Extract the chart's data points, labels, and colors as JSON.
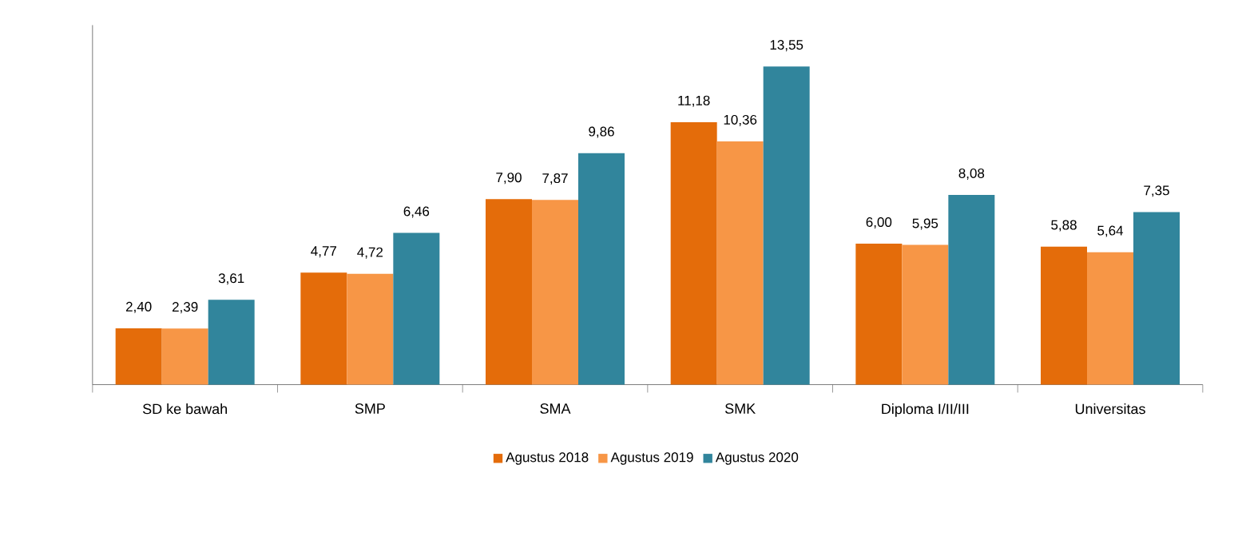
{
  "chart_data": {
    "type": "bar",
    "categories": [
      "SD ke bawah",
      "SMP",
      "SMA",
      "SMK",
      "Diploma I/II/III",
      "Universitas"
    ],
    "series": [
      {
        "name": "Agustus 2018",
        "color": "#e46c0a",
        "values": [
          2.4,
          4.77,
          7.9,
          11.18,
          6.0,
          5.88
        ],
        "value_labels": [
          "2,40",
          "4,77",
          "7,90",
          "11,18",
          "6,00",
          "5,88"
        ]
      },
      {
        "name": "Agustus 2019",
        "color": "#f79646",
        "values": [
          2.39,
          4.72,
          7.87,
          10.36,
          5.95,
          5.64
        ],
        "value_labels": [
          "2,39",
          "4,72",
          "7,87",
          "10,36",
          "5,95",
          "5,64"
        ]
      },
      {
        "name": "Agustus 2020",
        "color": "#31859c",
        "values": [
          3.61,
          6.46,
          9.86,
          13.55,
          8.08,
          7.35
        ],
        "value_labels": [
          "3,61",
          "6,46",
          "9,86",
          "13,55",
          "8,08",
          "7,35"
        ]
      }
    ],
    "legend": "bottom"
  }
}
